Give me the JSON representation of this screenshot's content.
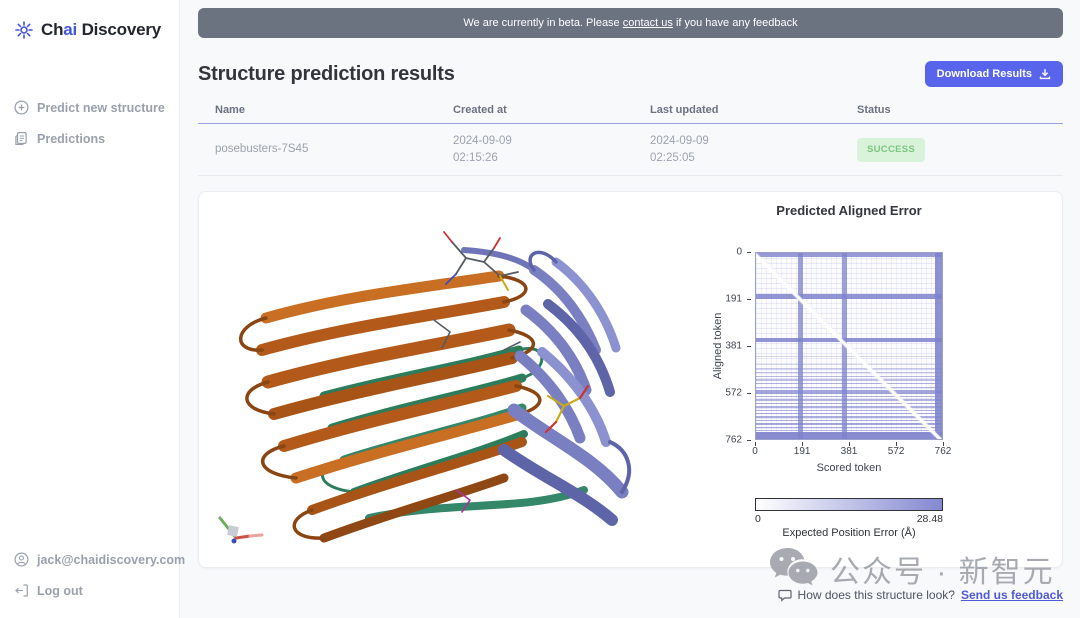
{
  "brand": {
    "prefix": "Ch",
    "accent": "ai",
    "suffix": " Discovery",
    "accent_color": "#4355dd"
  },
  "sidebar": {
    "items": [
      {
        "label": "Predict new structure",
        "icon": "plus-circle-icon"
      },
      {
        "label": "Predictions",
        "icon": "clipboard-icon"
      }
    ],
    "footer": {
      "email": "jack@chaidiscovery.com",
      "logout_label": "Log out"
    }
  },
  "banner": {
    "text_before": "We are currently in beta. Please ",
    "link_text": "contact us",
    "text_after": " if you have any feedback",
    "background": "#6b7280"
  },
  "header": {
    "title": "Structure prediction results",
    "download_label": "Download Results"
  },
  "table": {
    "columns": [
      "Name",
      "Created at",
      "Last updated",
      "Status"
    ],
    "rows": [
      {
        "name": "posebusters-7S45",
        "created_date": "2024-09-09",
        "created_time": "02:15:26",
        "updated_date": "2024-09-09",
        "updated_time": "02:25:05",
        "status": "SUCCESS",
        "status_bg": "#d9f2da",
        "status_color": "#7bc581"
      }
    ]
  },
  "viewer": {
    "chain_colors": {
      "chain_orange": "#b35a1a",
      "chain_purple": "#7a7fc2",
      "chain_teal": "#2d7c5c"
    },
    "axes_widget_colors": {
      "x": "#cd5247",
      "y": "#6fae5c",
      "cube": "#c8ccd4"
    }
  },
  "chart_data": {
    "type": "heatmap",
    "title": "Predicted Aligned Error",
    "xlabel": "Scored token",
    "ylabel": "Aligned token",
    "domain": [
      0,
      762
    ],
    "xticks": [
      0,
      191,
      381,
      572,
      762
    ],
    "yticks": [
      0,
      191,
      381,
      572,
      762
    ],
    "band_color": "#7e82cb",
    "h_bands": [
      [
        0,
        13,
        0.8
      ],
      [
        168,
        186,
        0.85
      ],
      [
        345,
        363,
        0.85
      ],
      [
        420,
        425,
        0.3
      ],
      [
        452,
        458,
        0.32
      ],
      [
        470,
        476,
        0.32
      ],
      [
        486,
        492,
        0.5
      ],
      [
        501,
        507,
        0.55
      ],
      [
        516,
        522,
        0.5
      ],
      [
        531,
        537,
        0.55
      ],
      [
        546,
        552,
        0.6
      ],
      [
        560,
        575,
        0.7
      ],
      [
        584,
        590,
        0.6
      ],
      [
        598,
        604,
        0.6
      ],
      [
        612,
        618,
        0.6
      ],
      [
        626,
        632,
        0.62
      ],
      [
        640,
        646,
        0.62
      ],
      [
        654,
        660,
        0.65
      ],
      [
        668,
        674,
        0.65
      ],
      [
        682,
        688,
        0.65
      ],
      [
        696,
        702,
        0.68
      ],
      [
        710,
        716,
        0.68
      ],
      [
        722,
        728,
        0.6
      ],
      [
        733,
        762,
        0.92
      ]
    ],
    "v_bands": [
      [
        172,
        192,
        0.75
      ],
      [
        352,
        372,
        0.75
      ],
      [
        735,
        762,
        0.88
      ]
    ],
    "diagonal_color": "#ffffff",
    "colorbar": {
      "min_label": "0",
      "max_label": "28.48",
      "label": "Expected Position Error (Å)",
      "min_color": "#ffffff",
      "max_color": "#8488d1"
    }
  },
  "feedback": {
    "question": "How does this structure look?",
    "link_text": "Send us feedback"
  },
  "watermark": {
    "text": "公众号 · 新智元"
  }
}
